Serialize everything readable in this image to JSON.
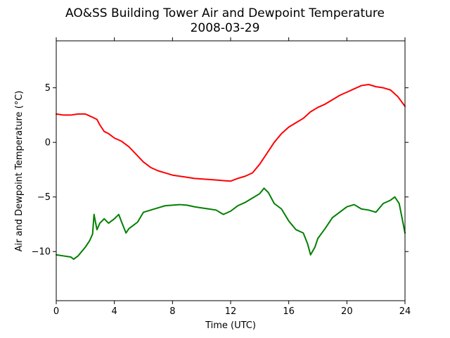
{
  "chart_data": {
    "type": "line",
    "title": "AO&SS Building Tower Air and Dewpoint Temperature",
    "subtitle": "2008-03-29",
    "xlabel": "Time (UTC)",
    "ylabel": "Air and Dewpoint Temperature (°C)",
    "xlim": [
      0,
      24
    ],
    "ylim": [
      -14.5,
      9.3
    ],
    "xticks": [
      0,
      4,
      8,
      12,
      16,
      20,
      24
    ],
    "yticks": [
      -10,
      -5,
      0,
      5
    ],
    "grid": false,
    "legend": "none",
    "series": [
      {
        "color": "#ff0000",
        "x": [
          0,
          0.5,
          1,
          1.5,
          2,
          2.5,
          2.8,
          3,
          3.3,
          3.6,
          4,
          4.5,
          5,
          5.5,
          6,
          6.5,
          7,
          7.5,
          8,
          8.5,
          9,
          9.5,
          10,
          10.5,
          11,
          11.5,
          12,
          12.5,
          13,
          13.5,
          14,
          14.5,
          15,
          15.5,
          16,
          16.5,
          17,
          17.5,
          18,
          18.5,
          19,
          19.5,
          20,
          20.5,
          21,
          21.5,
          22,
          22.5,
          23,
          23.5,
          24
        ],
        "y": [
          2.6,
          2.5,
          2.5,
          2.6,
          2.6,
          2.3,
          2.1,
          1.6,
          1.0,
          0.8,
          0.4,
          0.1,
          -0.4,
          -1.1,
          -1.8,
          -2.3,
          -2.6,
          -2.8,
          -3.0,
          -3.1,
          -3.2,
          -3.3,
          -3.35,
          -3.4,
          -3.45,
          -3.5,
          -3.55,
          -3.3,
          -3.1,
          -2.8,
          -2.0,
          -1.0,
          0.0,
          0.8,
          1.4,
          1.8,
          2.2,
          2.8,
          3.2,
          3.5,
          3.9,
          4.3,
          4.6,
          4.9,
          5.2,
          5.3,
          5.1,
          5.0,
          4.8,
          4.2,
          3.3
        ]
      },
      {
        "color": "#008000",
        "x": [
          0,
          0.5,
          1,
          1.2,
          1.5,
          2,
          2.3,
          2.5,
          2.6,
          2.8,
          3,
          3.3,
          3.6,
          4,
          4.3,
          4.5,
          4.8,
          5,
          5.3,
          5.6,
          6,
          6.5,
          7,
          7.5,
          8,
          8.5,
          9,
          9.5,
          10,
          10.5,
          11,
          11.5,
          12,
          12.5,
          13,
          13.5,
          14,
          14.3,
          14.6,
          15,
          15.5,
          16,
          16.5,
          17,
          17.3,
          17.5,
          17.8,
          18,
          18.5,
          19,
          19.5,
          20,
          20.5,
          21,
          21.5,
          22,
          22.5,
          23,
          23.3,
          23.6,
          24
        ],
        "y": [
          -10.3,
          -10.4,
          -10.5,
          -10.7,
          -10.4,
          -9.6,
          -9.0,
          -8.4,
          -6.6,
          -8.0,
          -7.4,
          -7.0,
          -7.4,
          -7.0,
          -6.6,
          -7.3,
          -8.3,
          -7.9,
          -7.6,
          -7.3,
          -6.4,
          -6.2,
          -6.0,
          -5.8,
          -5.75,
          -5.7,
          -5.75,
          -5.9,
          -6.0,
          -6.1,
          -6.2,
          -6.6,
          -6.3,
          -5.8,
          -5.5,
          -5.1,
          -4.7,
          -4.2,
          -4.6,
          -5.6,
          -6.1,
          -7.2,
          -8.0,
          -8.3,
          -9.3,
          -10.3,
          -9.6,
          -8.8,
          -7.9,
          -6.9,
          -6.4,
          -5.9,
          -5.7,
          -6.1,
          -6.2,
          -6.4,
          -5.6,
          -5.3,
          -5.0,
          -5.6,
          -8.3
        ]
      }
    ]
  }
}
